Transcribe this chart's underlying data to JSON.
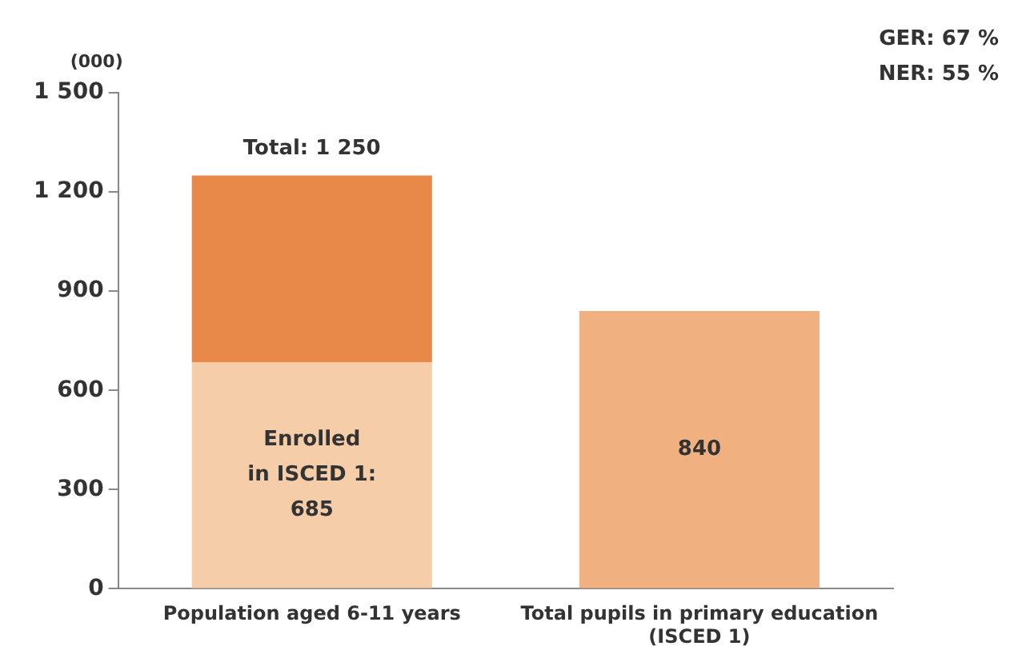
{
  "chart_data": {
    "type": "bar",
    "categories": [
      "Population aged 6-11 years",
      "Total pupils in primary education (ISCED 1)"
    ],
    "stacked": true,
    "series": [
      {
        "colors": [
          "#f6cda9",
          "#f0b07f"
        ],
        "values": [
          685,
          840
        ],
        "value_labels": [
          "Enrolled\nin ISCED 1:\n685",
          "840"
        ]
      },
      {
        "color": "#e8894a",
        "values": [
          565,
          null
        ]
      }
    ],
    "totals": [
      "Total: 1 250",
      null
    ],
    "ylim": [
      0,
      1500
    ],
    "yticks": [
      0,
      300,
      600,
      900,
      {
        "value": 1200,
        "label": "1 200"
      },
      {
        "value": 1500,
        "label": "1 500"
      }
    ],
    "grid": false,
    "legend": false,
    "annotations": [
      "(000)",
      "GER: 67 %",
      "NER: 55 %"
    ]
  }
}
